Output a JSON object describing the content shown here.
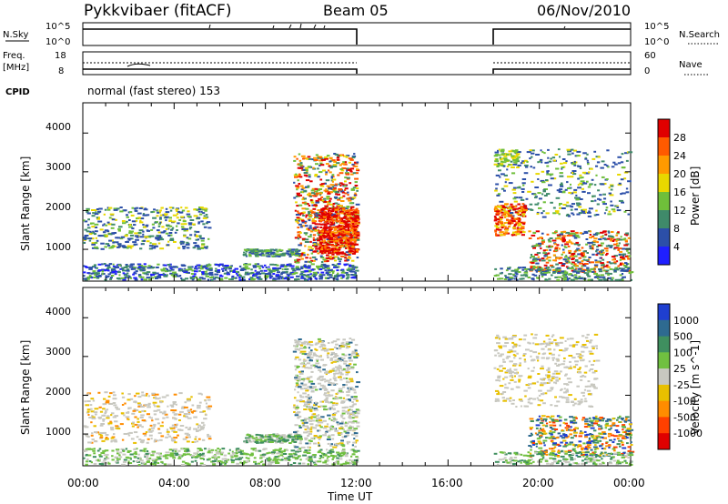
{
  "header": {
    "title": "Pykkvibaer (fitACF)",
    "beam": "Beam 05",
    "date": "06/Nov/2010"
  },
  "nsky_panel": {
    "left_label": "N.Sky",
    "left_ticks": [
      "10^5",
      "10^0"
    ],
    "right_ticks": [
      "10^5",
      "10^0"
    ],
    "right_label": "N.Search"
  },
  "freq_panel": {
    "left_label_1": "Freq.",
    "left_label_2": "[MHz]",
    "left_ticks": [
      "18",
      "8"
    ],
    "right_ticks": [
      "60",
      "0"
    ],
    "right_label": "Nave"
  },
  "cpid": {
    "label": "CPID",
    "value": "normal (fast stereo) 153"
  },
  "power_panel": {
    "ylabel": "Slant Range [km]",
    "yticks": [
      "1000",
      "2000",
      "3000",
      "4000"
    ],
    "colorbar_label": "Power [dB]",
    "colorbar_ticks": [
      "4",
      "8",
      "12",
      "16",
      "20",
      "24",
      "28"
    ],
    "colors": [
      "#1f1fff",
      "#2c4fa8",
      "#3f8a6a",
      "#6fbf3a",
      "#e8d800",
      "#ff9a00",
      "#ff5a00",
      "#e00000"
    ]
  },
  "velocity_panel": {
    "ylabel": "Slant Range [km]",
    "yticks": [
      "1000",
      "2000",
      "3000",
      "4000"
    ],
    "colorbar_label": "Velocity [m s^-1]",
    "colorbar_ticks": [
      "1000",
      "500",
      "100",
      "25",
      "-25",
      "-100",
      "-500",
      "-1000"
    ],
    "colors": [
      "#1f3fd0",
      "#2e6a90",
      "#3f8f5f",
      "#70c040",
      "#c8c8c0",
      "#e8c000",
      "#ff8c00",
      "#ff4000",
      "#e00000"
    ]
  },
  "x_axis": {
    "ticks": [
      "00:00",
      "04:00",
      "08:00",
      "12:00",
      "16:00",
      "20:00",
      "00:00"
    ],
    "label": "Time UT"
  },
  "chart_data": {
    "type": "heatmap",
    "x_range_hours": [
      0,
      24
    ],
    "y_range_km": [
      180,
      4600
    ],
    "data_gaps_hours": [
      [
        12,
        18
      ]
    ],
    "power_range_db": [
      0,
      32
    ],
    "velocity_range_ms": [
      -1000,
      1000
    ]
  }
}
